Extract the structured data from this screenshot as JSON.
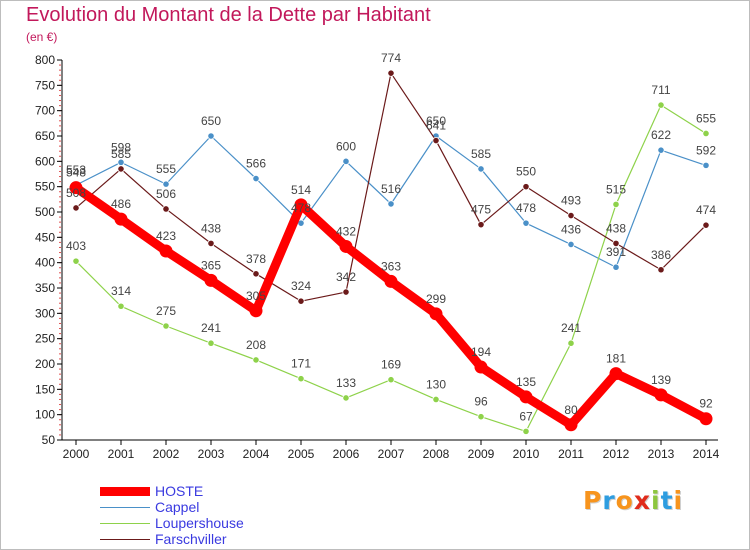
{
  "title": "Evolution du Montant de la Dette par Habitant",
  "subtitle": "(en €)",
  "logo": {
    "text": "Proxiti",
    "letter_colors": [
      "#f7941d",
      "#2e9de0",
      "#f7941d",
      "#e02b1b",
      "#8dc63f",
      "#2e9de0",
      "#f7941d"
    ]
  },
  "chart_data": {
    "type": "line",
    "title": "Evolution du Montant de la Dette par Habitant",
    "subtitle": "(en €)",
    "xlabel": "",
    "ylabel": "",
    "x": [
      "2000",
      "2001",
      "2002",
      "2003",
      "2004",
      "2005",
      "2006",
      "2007",
      "2008",
      "2009",
      "2010",
      "2011",
      "2012",
      "2013",
      "2014"
    ],
    "ylim": [
      50,
      800
    ],
    "yticks": [
      50,
      100,
      150,
      200,
      250,
      300,
      350,
      400,
      450,
      500,
      550,
      600,
      650,
      700,
      750,
      800
    ],
    "grid": false,
    "legend_position": "bottom-left",
    "series": [
      {
        "name": "Cappel",
        "color": "#4a90c8",
        "values": [
          553,
          598,
          555,
          650,
          566,
          478,
          600,
          516,
          650,
          585,
          478,
          436,
          391,
          622,
          592
        ]
      },
      {
        "name": "Loupershouse",
        "color": "#8ed24a",
        "values": [
          403,
          314,
          275,
          241,
          208,
          171,
          133,
          169,
          130,
          96,
          67,
          241,
          515,
          711,
          655
        ]
      },
      {
        "name": "Farschviller",
        "color": "#6b1a1a",
        "values": [
          508,
          585,
          506,
          438,
          378,
          324,
          342,
          774,
          641,
          475,
          550,
          493,
          438,
          386,
          474
        ]
      },
      {
        "name": "HOSTE",
        "color": "#ff0000",
        "values": [
          548,
          486,
          423,
          365,
          305,
          514,
          432,
          363,
          299,
          194,
          135,
          80,
          181,
          139,
          92
        ]
      }
    ],
    "labels": {
      "Cappel": [
        "553",
        "598",
        "555",
        "650",
        "566",
        "478",
        "600",
        "516",
        "650",
        "585",
        "478",
        "436",
        "391",
        "622",
        "592"
      ],
      "Loupershouse": [
        "403",
        "314",
        "275",
        "241",
        "208",
        "171",
        "133",
        "169",
        "130",
        "96",
        "67",
        "241",
        "515",
        "711",
        "655"
      ],
      "Farschviller": [
        "508",
        "585",
        "506",
        "438",
        "378",
        "324",
        "342",
        "774",
        "641",
        "475",
        "550",
        "493",
        "438",
        "386",
        "474"
      ],
      "HOSTE": [
        "548",
        "486",
        "423",
        "365",
        "305",
        "514",
        "432",
        "363",
        "299",
        "194",
        "135",
        "80",
        "181",
        "139",
        "92"
      ]
    }
  },
  "legend": [
    {
      "name": "HOSTE",
      "color": "#ff0000"
    },
    {
      "name": "Cappel",
      "color": "#4a90c8"
    },
    {
      "name": "Loupershouse",
      "color": "#8ed24a"
    },
    {
      "name": "Farschviller",
      "color": "#6b1a1a"
    }
  ]
}
